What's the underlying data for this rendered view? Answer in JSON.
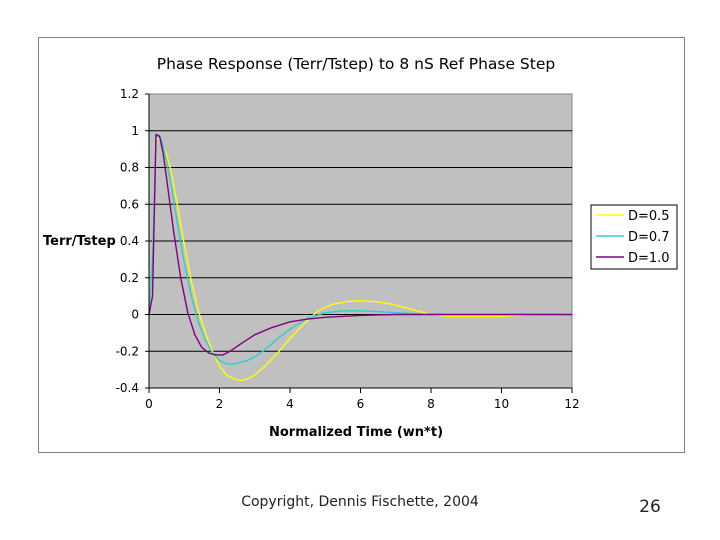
{
  "chart_data": {
    "type": "line",
    "title": "Phase Response (Terr/Tstep) to 8 nS Ref Phase Step",
    "xlabel": "Normalized Time (wn*t)",
    "ylabel": "Terr/Tstep",
    "xlim": [
      0,
      12
    ],
    "ylim": [
      -0.4,
      1.2
    ],
    "x_ticks": [
      0,
      2,
      4,
      6,
      8,
      10,
      12
    ],
    "y_ticks": [
      -0.4,
      -0.2,
      0,
      0.2,
      0.4,
      0.6,
      0.8,
      1,
      1.2
    ],
    "x_tick_labels": [
      "0",
      "2",
      "4",
      "6",
      "8",
      "10",
      "12"
    ],
    "y_tick_labels": [
      "-0.4",
      "-0.2",
      "0",
      "0.2",
      "0.4",
      "0.6",
      "0.8",
      "1",
      "1.2"
    ],
    "grid": "horizontal",
    "plot_background": "#c0c0c0",
    "legend_position": "right",
    "series": [
      {
        "name": "D=0.5",
        "color": "#ffff00",
        "x": [
          0,
          0.1,
          0.2,
          0.3,
          0.4,
          0.5,
          0.6,
          0.8,
          1.0,
          1.2,
          1.4,
          1.6,
          1.8,
          2.0,
          2.2,
          2.4,
          2.6,
          2.8,
          3.0,
          3.3,
          3.6,
          4.0,
          4.4,
          4.8,
          5.2,
          5.6,
          6.0,
          6.4,
          6.8,
          7.2,
          7.6,
          8.0,
          8.5,
          9.0,
          9.5,
          10.0,
          11.0,
          12.0
        ],
        "y": [
          0,
          0.3,
          0.95,
          0.96,
          0.92,
          0.87,
          0.8,
          0.6,
          0.38,
          0.18,
          0.02,
          -0.1,
          -0.2,
          -0.28,
          -0.33,
          -0.35,
          -0.36,
          -0.35,
          -0.33,
          -0.28,
          -0.22,
          -0.13,
          -0.05,
          0.02,
          0.055,
          0.07,
          0.075,
          0.07,
          0.06,
          0.04,
          0.02,
          0.0,
          -0.01,
          -0.01,
          -0.01,
          -0.01,
          0,
          0
        ]
      },
      {
        "name": "D=0.7",
        "color": "#33cccc",
        "x": [
          0,
          0.1,
          0.2,
          0.3,
          0.4,
          0.6,
          0.8,
          1.0,
          1.2,
          1.4,
          1.6,
          1.8,
          2.0,
          2.2,
          2.4,
          2.6,
          2.8,
          3.0,
          3.3,
          3.6,
          4.0,
          4.5,
          5.0,
          5.5,
          6.0,
          6.5,
          7.0,
          8.0,
          9.0,
          10.0,
          12.0
        ],
        "y": [
          0,
          0.3,
          0.97,
          0.97,
          0.92,
          0.74,
          0.5,
          0.28,
          0.1,
          -0.04,
          -0.14,
          -0.21,
          -0.25,
          -0.27,
          -0.27,
          -0.26,
          -0.25,
          -0.23,
          -0.19,
          -0.14,
          -0.08,
          -0.02,
          0.01,
          0.02,
          0.02,
          0.015,
          0.01,
          0.0,
          0.0,
          0.0,
          0.0
        ]
      },
      {
        "name": "D=1.0",
        "color": "#800080",
        "x": [
          0,
          0.1,
          0.2,
          0.3,
          0.4,
          0.5,
          0.7,
          0.9,
          1.1,
          1.3,
          1.5,
          1.7,
          1.9,
          2.1,
          2.3,
          2.6,
          3.0,
          3.5,
          4.0,
          4.5,
          5.0,
          5.5,
          6.0,
          7.0,
          8.0,
          9.0,
          10.0,
          12.0
        ],
        "y": [
          0,
          0.1,
          0.98,
          0.97,
          0.88,
          0.74,
          0.45,
          0.2,
          0.01,
          -0.11,
          -0.18,
          -0.21,
          -0.22,
          -0.22,
          -0.2,
          -0.16,
          -0.11,
          -0.07,
          -0.04,
          -0.025,
          -0.015,
          -0.01,
          -0.005,
          0,
          0,
          0,
          0,
          0
        ]
      }
    ]
  },
  "footer": {
    "copyright": "Copyright, Dennis Fischette, 2004",
    "page_number": "26"
  }
}
